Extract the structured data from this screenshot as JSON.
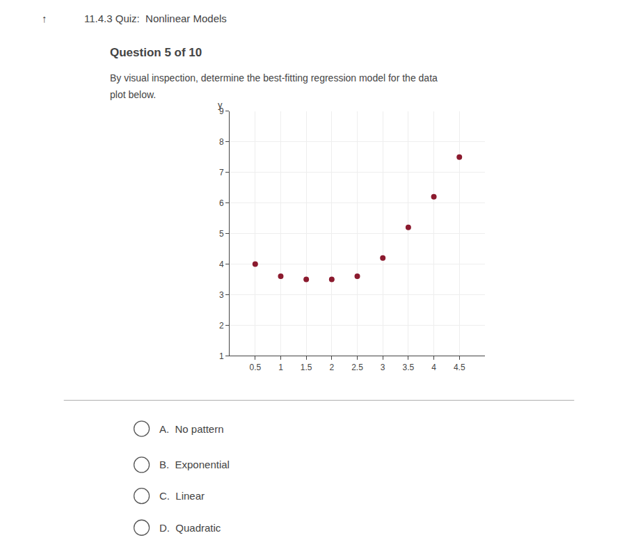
{
  "chart_data": {
    "type": "scatter",
    "annotations": [
      "↑",
      "11.4.3 Quiz:  Nonlinear Models",
      "Question 5 of 10",
      "By visual inspection, determine the best-fitting regression model for the data",
      "plot below.",
      "A.  No pattern",
      "B.  Exponential",
      "C.  Linear",
      "D.  Quadratic"
    ],
    "x": [
      0.5,
      1.0,
      1.5,
      2.0,
      2.5,
      3.0,
      3.5,
      4.0,
      4.5
    ],
    "values": [
      4.0,
      3.6,
      3.5,
      3.5,
      3.6,
      4.2,
      5.2,
      6.2,
      7.5
    ],
    "color": "#8B1A2E",
    "xlim": [
      0,
      5.0
    ],
    "ylim": [
      1,
      9
    ],
    "xticks": [
      0.5,
      1,
      1.5,
      2,
      2.5,
      3,
      3.5,
      4,
      4.5
    ],
    "yticks": [
      1,
      2,
      3,
      4,
      5,
      6,
      7,
      8,
      9
    ],
    "ylabel": "y",
    "grid": true
  }
}
